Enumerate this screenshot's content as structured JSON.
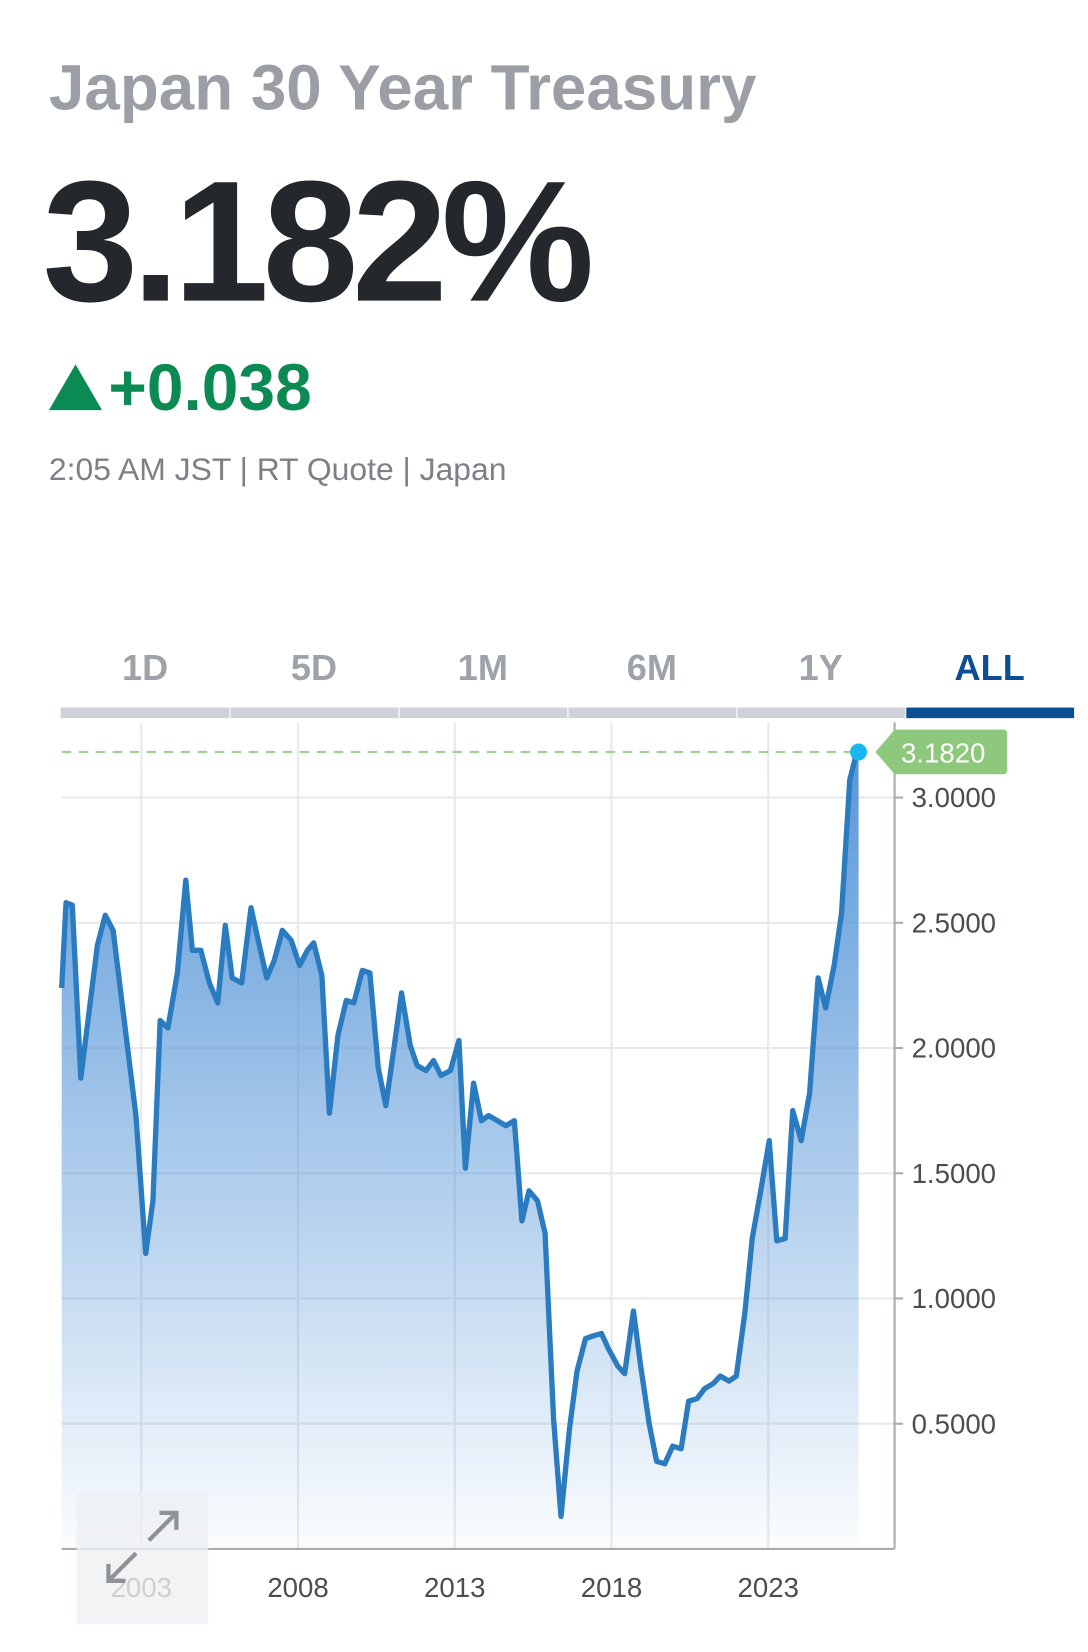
{
  "header": {
    "title": "Japan 30 Year Treasury",
    "price": "3.182%",
    "change": "+0.038",
    "meta": "2:05 AM JST | RT Quote | Japan"
  },
  "tabs": [
    {
      "label": "1D",
      "selected": false
    },
    {
      "label": "5D",
      "selected": false
    },
    {
      "label": "1M",
      "selected": false
    },
    {
      "label": "6M",
      "selected": false
    },
    {
      "label": "1Y",
      "selected": false
    },
    {
      "label": "ALL",
      "selected": true
    }
  ],
  "chart_data": {
    "type": "area",
    "color": "#2a7bbf",
    "grid": true,
    "x": [
      2000.46,
      2000.6,
      2000.8,
      2001.07,
      2001.6,
      2001.85,
      2002.1,
      2002.83,
      2003.14,
      2003.37,
      2003.6,
      2003.85,
      2004.15,
      2004.42,
      2004.63,
      2004.9,
      2005.17,
      2005.44,
      2005.68,
      2005.9,
      2006.2,
      2006.5,
      2006.73,
      2007.0,
      2007.24,
      2007.5,
      2007.78,
      2008.05,
      2008.3,
      2008.5,
      2008.76,
      2009.0,
      2009.27,
      2009.54,
      2009.78,
      2010.05,
      2010.29,
      2010.56,
      2010.8,
      2011.07,
      2011.3,
      2011.58,
      2011.8,
      2012.08,
      2012.32,
      2012.56,
      2012.86,
      2013.13,
      2013.34,
      2013.6,
      2013.85,
      2014.08,
      2014.36,
      2014.63,
      2014.9,
      2015.14,
      2015.37,
      2015.64,
      2015.88,
      2016.15,
      2016.39,
      2016.66,
      2016.9,
      2017.17,
      2017.4,
      2017.68,
      2017.9,
      2018.2,
      2018.42,
      2018.7,
      2018.93,
      2019.2,
      2019.44,
      2019.7,
      2019.95,
      2020.22,
      2020.46,
      2020.73,
      2020.97,
      2021.24,
      2021.47,
      2021.75,
      2021.98,
      2022.25,
      2022.49,
      2022.76,
      2023.03,
      2023.27,
      2023.54,
      2023.78,
      2024.05,
      2024.32,
      2024.59,
      2024.83,
      2025.1,
      2025.34,
      2025.6,
      2025.8,
      2025.88
    ],
    "values": [
      2.24,
      2.58,
      2.57,
      1.88,
      2.41,
      2.53,
      2.47,
      1.73,
      1.18,
      1.39,
      2.11,
      2.08,
      2.3,
      2.67,
      2.39,
      2.39,
      2.26,
      2.18,
      2.49,
      2.28,
      2.26,
      2.56,
      2.43,
      2.28,
      2.35,
      2.47,
      2.43,
      2.33,
      2.39,
      2.42,
      2.29,
      1.74,
      2.05,
      2.19,
      2.18,
      2.31,
      2.3,
      1.92,
      1.77,
      2.01,
      2.22,
      2.01,
      1.93,
      1.91,
      1.95,
      1.89,
      1.91,
      2.03,
      1.52,
      1.86,
      1.71,
      1.73,
      1.71,
      1.69,
      1.71,
      1.31,
      1.43,
      1.39,
      1.26,
      0.52,
      0.13,
      0.48,
      0.71,
      0.84,
      0.85,
      0.86,
      0.8,
      0.73,
      0.7,
      0.95,
      0.73,
      0.5,
      0.35,
      0.34,
      0.41,
      0.4,
      0.59,
      0.6,
      0.64,
      0.66,
      0.69,
      0.67,
      0.69,
      0.94,
      1.24,
      1.43,
      1.63,
      1.23,
      1.24,
      1.75,
      1.63,
      1.82,
      2.28,
      2.16,
      2.33,
      2.54,
      3.07,
      3.17,
      3.182
    ],
    "last_value": {
      "value": 3.182,
      "label": "3.1820"
    },
    "xlim": [
      2000.46,
      2027.03
    ],
    "ylim": [
      0,
      3.3
    ],
    "xticks": [
      2003,
      2008,
      2013,
      2018,
      2023
    ],
    "yticks": [
      {
        "value": 0.5,
        "label": "0.5000"
      },
      {
        "value": 1.0,
        "label": "1.0000"
      },
      {
        "value": 1.5,
        "label": "1.5000"
      },
      {
        "value": 2.0,
        "label": "2.0000"
      },
      {
        "value": 2.5,
        "label": "2.5000"
      },
      {
        "value": 3.0,
        "label": "3.0000"
      }
    ]
  }
}
